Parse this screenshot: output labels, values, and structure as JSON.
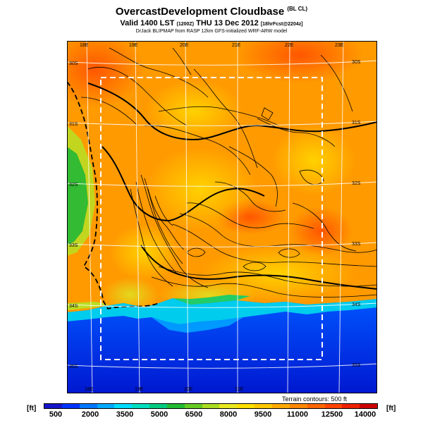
{
  "header": {
    "title": "OvercastDevelopment Cloudbase",
    "title_suffix": "(BL CL)",
    "valid_main": "Valid 1400 LST",
    "valid_utc": "(1200Z)",
    "valid_date": "THU 13 Dec 2012",
    "valid_run": "[18hrFcst@2204z]",
    "credit": "DrJack BLIPMAP from RASP 12km GFS-initialized WRF-ARW model"
  },
  "map": {
    "lon_top": [
      "18E",
      "19E",
      "20E",
      "21E",
      "22E",
      "23E"
    ],
    "lon_bottom": [
      "18E",
      "19E",
      "20E",
      "21E"
    ],
    "lat_left": [
      "30S",
      "31S",
      "32S",
      "33S",
      "34S",
      "35S"
    ],
    "lat_right": [
      "30S",
      "31S",
      "32S",
      "33S",
      "34S",
      "35S"
    ],
    "terrain_note": "Terrain contours: 500 ft"
  },
  "colorbar": {
    "unit": "[ft]",
    "labels": [
      "500",
      "2000",
      "3500",
      "5000",
      "6500",
      "8000",
      "9500",
      "11000",
      "12500",
      "14000"
    ],
    "colors": [
      "#1515c8",
      "#0033ff",
      "#0077ff",
      "#00aaff",
      "#00ddff",
      "#00e0c0",
      "#00cc80",
      "#22bb33",
      "#66cc22",
      "#aadd22",
      "#e8e820",
      "#ffe000",
      "#ffc800",
      "#ffaa00",
      "#ff8800",
      "#ff6600",
      "#ff4400",
      "#ee2200",
      "#cc0000"
    ]
  },
  "colors": {
    "background": "#ff9a00",
    "accent_hot": "#ff5a00",
    "sea": "#0033ee",
    "coast": "#00ddee"
  }
}
